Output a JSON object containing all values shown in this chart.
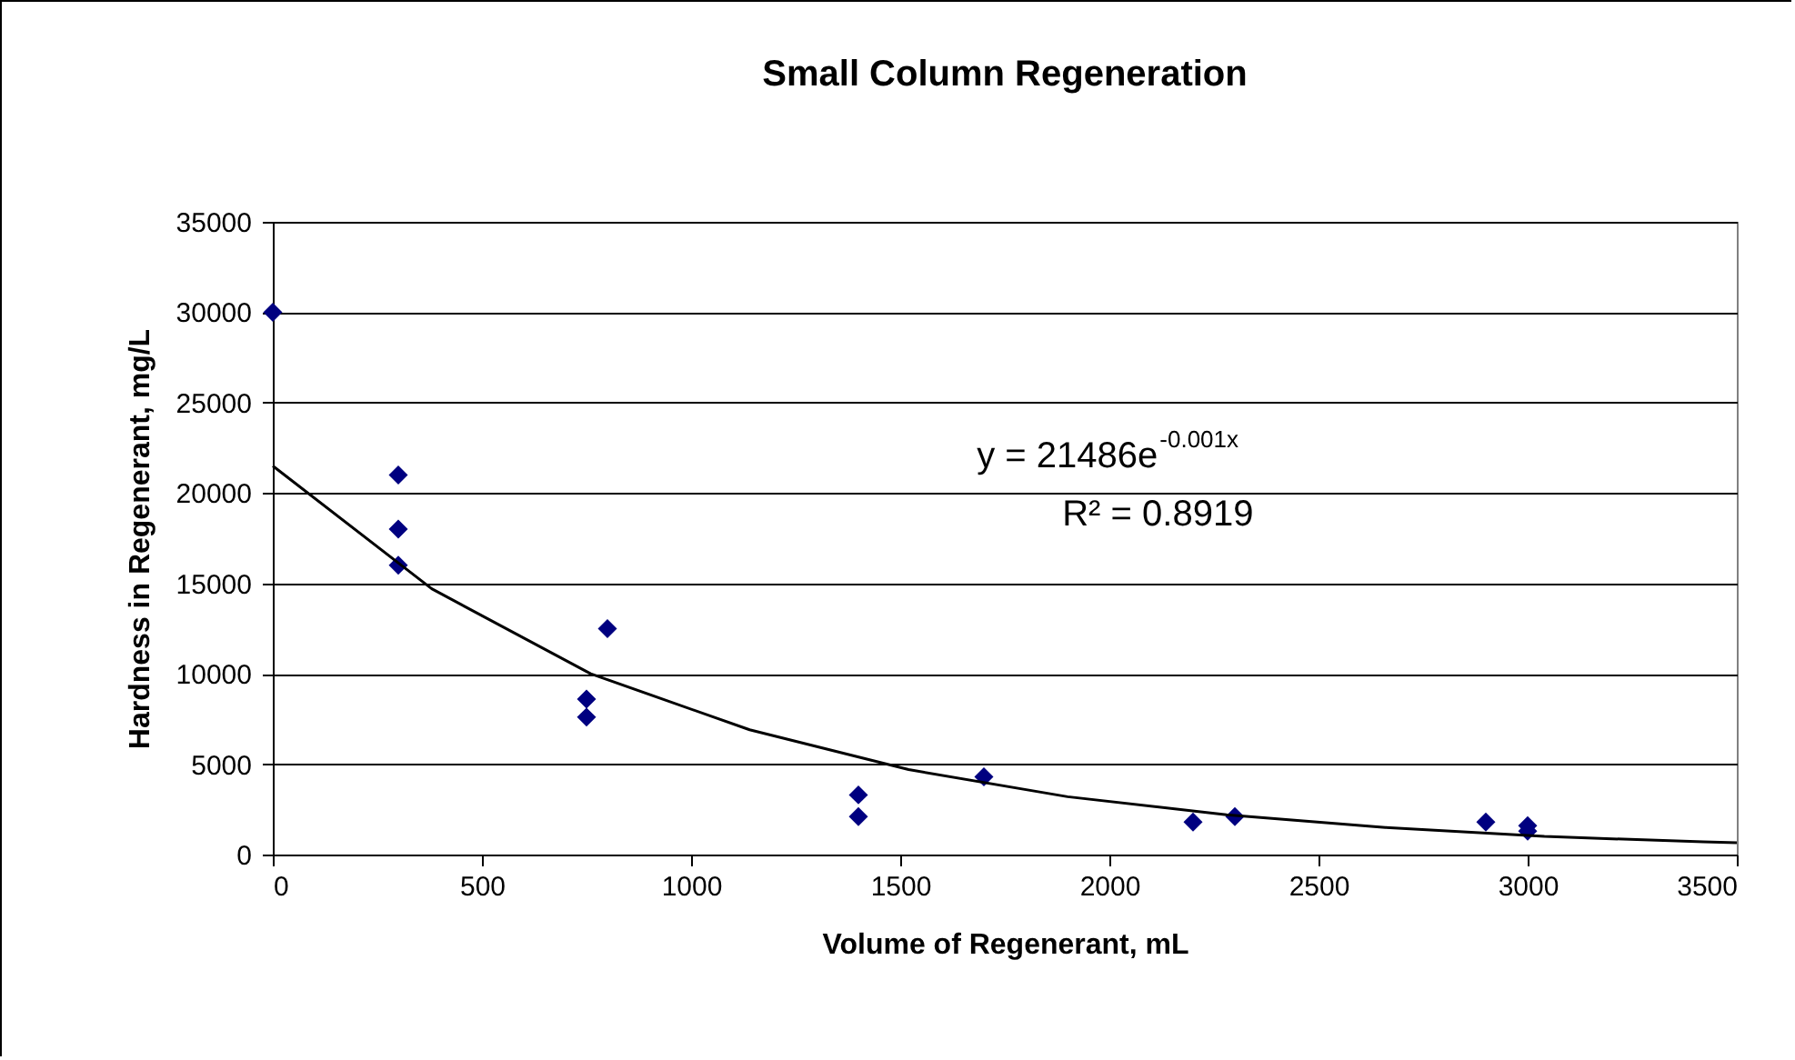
{
  "chart_data": {
    "type": "scatter",
    "title": "Small Column Regeneration",
    "xlabel": "Volume of Regenerant, mL",
    "ylabel": "Hardness in Regenerant, mg/L",
    "annotations": [
      "y = 21486e$^{-0.001x}$",
      "R² = 0.8919"
    ],
    "xlim": [
      0,
      3500
    ],
    "xticks": [
      0,
      500,
      1000,
      1500,
      2000,
      2500,
      3000,
      3500
    ],
    "ylim": [
      0,
      35000
    ],
    "yticks": [
      0,
      5000,
      10000,
      15000,
      20000,
      25000,
      30000,
      35000
    ],
    "grid": "y",
    "marker": "diamond",
    "series": [
      {
        "color": "#000080",
        "x": [
          0,
          300,
          300,
          300,
          750,
          750,
          800,
          1400,
          1400,
          1700,
          2200,
          2300,
          2900,
          3000,
          3000
        ],
        "values": [
          30000,
          21000,
          18000,
          16000,
          8600,
          7600,
          12500,
          3300,
          2100,
          4300,
          1800,
          2100,
          1800,
          1600,
          1300
        ]
      },
      {
        "type": "line",
        "color": "#000000",
        "marker": "none",
        "x": [
          0,
          380,
          760,
          1140,
          1520,
          1900,
          2280,
          2660,
          3040,
          3420,
          3500
        ],
        "values": [
          21500,
          14700,
          10000,
          6900,
          4700,
          3200,
          2200,
          1500,
          1000,
          700,
          650
        ]
      }
    ]
  }
}
